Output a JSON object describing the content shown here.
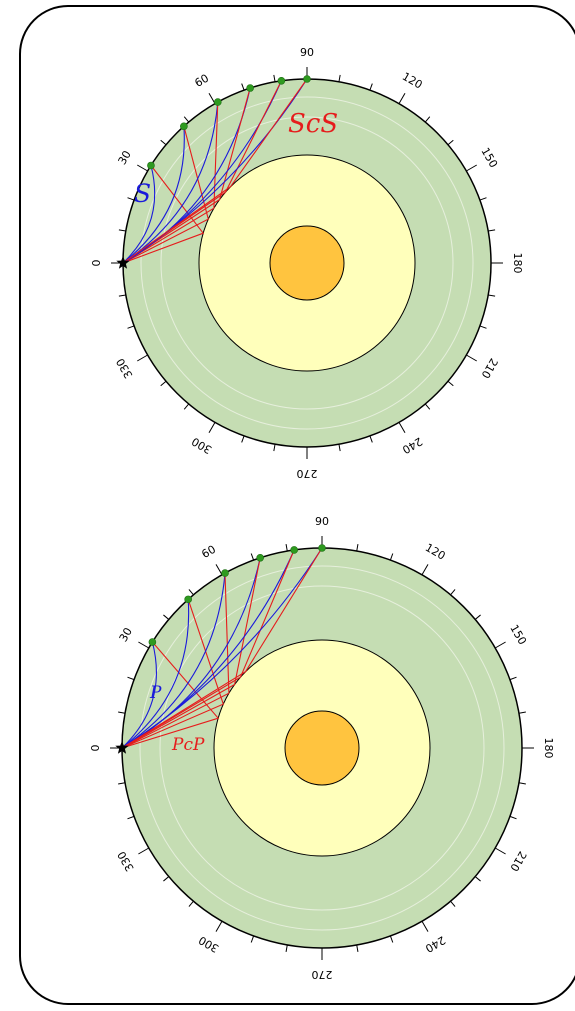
{
  "colors": {
    "crust": "#c5ddb3",
    "outer_core": "#ffffbb",
    "inner_core": "#ffc43f",
    "direct_ray": "#1a1adb",
    "reflected_ray": "#e61c1c",
    "station": "#2e9a1f",
    "outline": "#000000"
  },
  "panels": [
    {
      "id": "s-wave",
      "direct_phase": "S",
      "reflected_phase": "ScS",
      "angle_labels": [
        "0",
        "30",
        "60",
        "90",
        "120",
        "150",
        "180",
        "210",
        "240",
        "270",
        "300",
        "330"
      ],
      "source_angle_deg": 0,
      "receiver_angles_deg": [
        32,
        48,
        61,
        72,
        82,
        90
      ]
    },
    {
      "id": "p-wave",
      "direct_phase": "P",
      "reflected_phase": "PcP",
      "angle_labels": [
        "0",
        "30",
        "60",
        "90",
        "120",
        "150",
        "180",
        "210",
        "240",
        "270",
        "300",
        "330"
      ],
      "source_angle_deg": 0,
      "receiver_angles_deg": [
        32,
        48,
        61,
        72,
        82,
        90
      ]
    }
  ]
}
